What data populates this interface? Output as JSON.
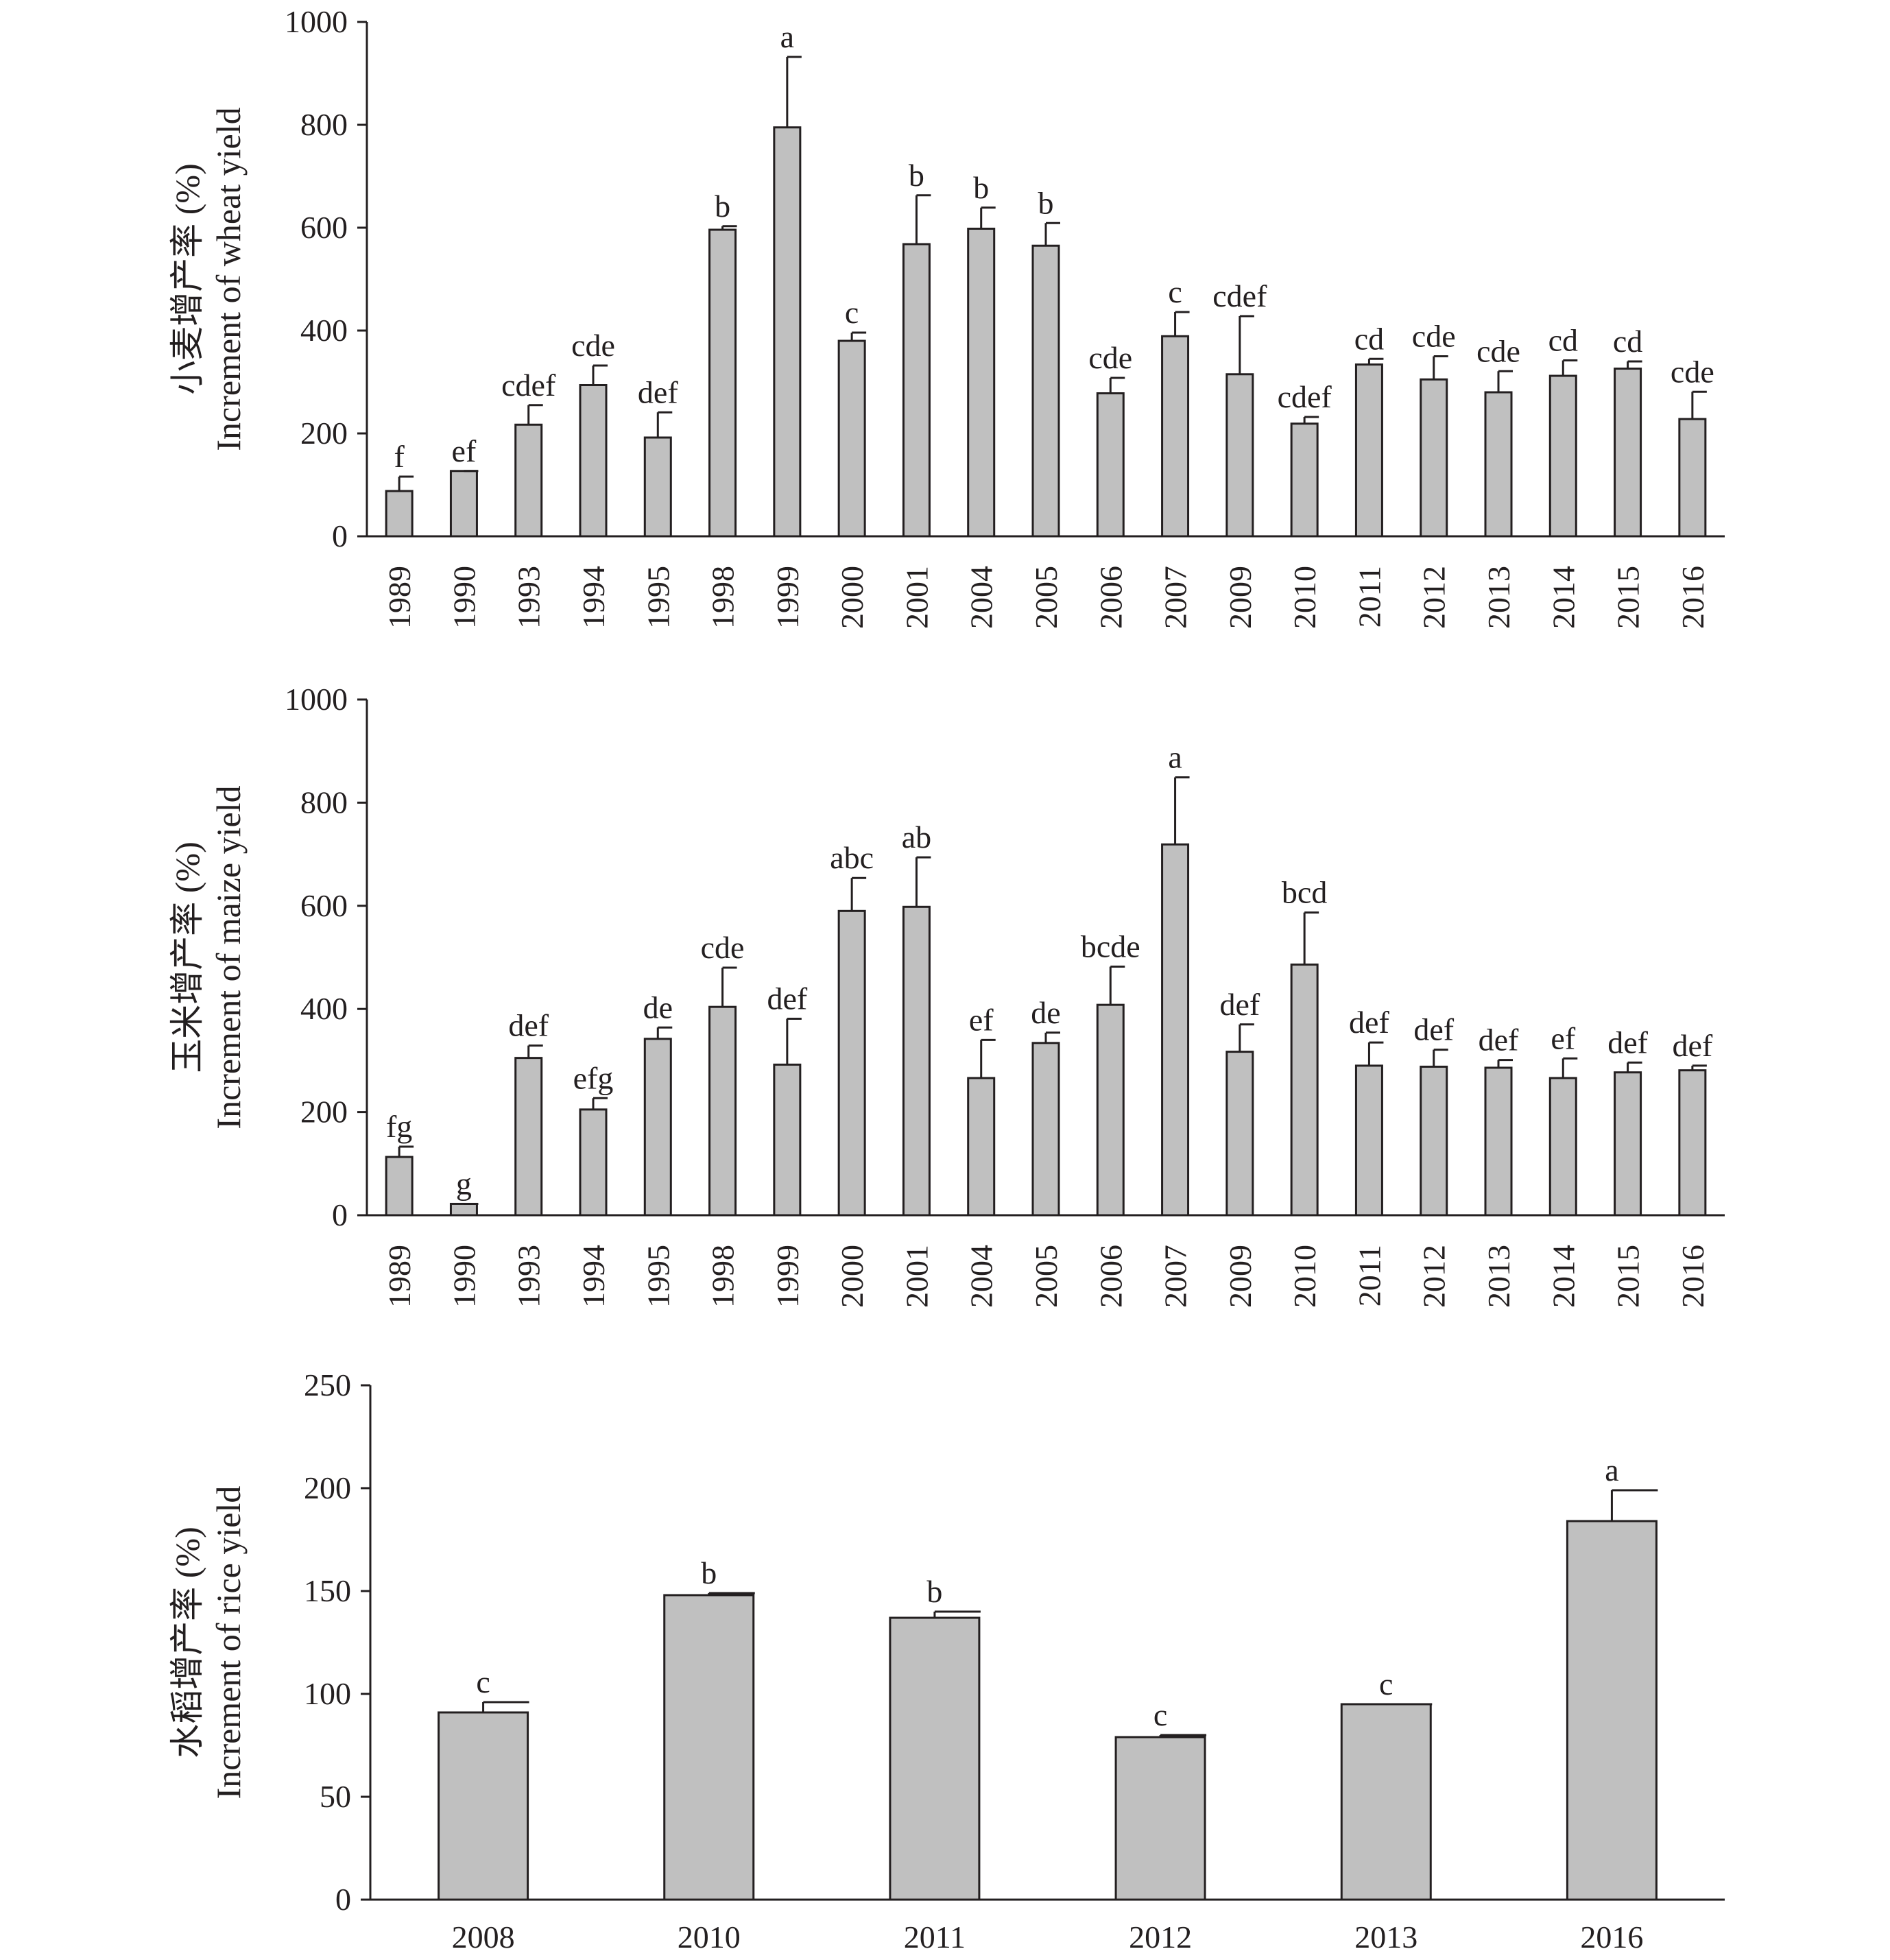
{
  "colors": {
    "bar_fill": "#c0c0c0",
    "stroke": "#231f20"
  },
  "chart_data": [
    {
      "type": "bar",
      "ylabel_cn": "小麦增产率 (%)",
      "ylabel_en": "Increment of wheat yield",
      "ylim": [
        0,
        1000
      ],
      "yticks": [
        0,
        200,
        400,
        600,
        800,
        1000
      ],
      "categories": [
        "1989",
        "1990",
        "1993",
        "1994",
        "1995",
        "1998",
        "1999",
        "2000",
        "2001",
        "2004",
        "2005",
        "2006",
        "2007",
        "2009",
        "2010",
        "2011",
        "2012",
        "2013",
        "2014",
        "2015",
        "2016"
      ],
      "values": [
        88,
        127,
        217,
        294,
        192,
        596,
        795,
        380,
        568,
        598,
        565,
        278,
        389,
        315,
        219,
        334,
        305,
        280,
        312,
        326,
        228
      ],
      "errors": [
        28,
        0,
        38,
        38,
        49,
        7,
        137,
        16,
        95,
        41,
        44,
        30,
        47,
        113,
        13,
        11,
        45,
        41,
        30,
        14,
        53
      ],
      "letters": [
        "f",
        "ef",
        "cdef",
        "cde",
        "def",
        "b",
        "a",
        "c",
        "b",
        "b",
        "b",
        "cde",
        "c",
        "cdef",
        "cdef",
        "cd",
        "cde",
        "cde",
        "cd",
        "cd",
        "cde"
      ],
      "x_label_orientation": "vertical",
      "grid": false
    },
    {
      "type": "bar",
      "ylabel_cn": "玉米增产率 (%)",
      "ylabel_en": "Increment of maize yield",
      "ylim": [
        0,
        1000
      ],
      "yticks": [
        0,
        200,
        400,
        600,
        800,
        1000
      ],
      "categories": [
        "1989",
        "1990",
        "1993",
        "1994",
        "1995",
        "1998",
        "1999",
        "2000",
        "2001",
        "2004",
        "2005",
        "2006",
        "2007",
        "2009",
        "2010",
        "2011",
        "2012",
        "2013",
        "2014",
        "2015",
        "2016"
      ],
      "values": [
        113,
        22,
        305,
        205,
        342,
        404,
        292,
        590,
        598,
        266,
        334,
        408,
        719,
        317,
        486,
        290,
        288,
        286,
        266,
        277,
        281
      ],
      "errors": [
        20,
        0,
        24,
        22,
        22,
        76,
        89,
        64,
        96,
        74,
        20,
        74,
        130,
        53,
        101,
        45,
        33,
        15,
        38,
        19,
        9
      ],
      "letters": [
        "fg",
        "g",
        "def",
        "efg",
        "de",
        "cde",
        "def",
        "abc",
        "ab",
        "ef",
        "de",
        "bcde",
        "a",
        "def",
        "bcd",
        "def",
        "def",
        "def",
        "ef",
        "def",
        "def"
      ],
      "x_label_orientation": "vertical",
      "grid": false
    },
    {
      "type": "bar",
      "ylabel_cn": "水稻增产率 (%)",
      "ylabel_en": "Increment of rice yield",
      "ylim": [
        0,
        250
      ],
      "yticks": [
        0,
        50,
        100,
        150,
        200,
        250
      ],
      "categories": [
        "2008",
        "2010",
        "2011",
        "2012",
        "2013",
        "2016"
      ],
      "values": [
        91,
        148,
        137,
        79,
        95,
        184
      ],
      "errors": [
        5,
        1,
        3,
        1,
        0,
        15
      ],
      "letters": [
        "c",
        "b",
        "b",
        "c",
        "c",
        "a"
      ],
      "x_label_orientation": "horizontal",
      "grid": false
    }
  ]
}
